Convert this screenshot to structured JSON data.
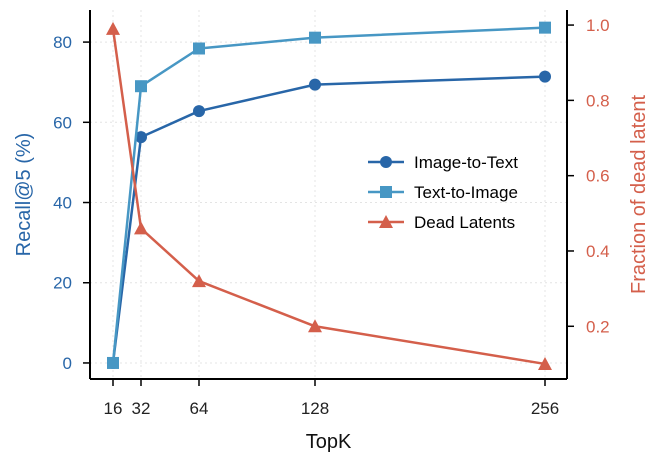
{
  "chart_data": {
    "type": "line",
    "xlabel": "TopK",
    "x": [
      16,
      32,
      64,
      128,
      256
    ],
    "x_ticks": [
      "16",
      "32",
      "64",
      "128",
      "256"
    ],
    "grid": true,
    "legend_position": "center-right",
    "left_axis": {
      "label": "Recall@5 (%)",
      "ylim": [
        -4,
        88
      ],
      "ticks": [
        "0",
        "20",
        "40",
        "60",
        "80"
      ],
      "tick_values": [
        0,
        20,
        40,
        60,
        80
      ],
      "color": "#2866a8"
    },
    "right_axis": {
      "label": "Fraction of dead latent",
      "ylim": [
        0.06,
        1.04
      ],
      "ticks": [
        "0.2",
        "0.4",
        "0.6",
        "0.8",
        "1.0"
      ],
      "tick_values": [
        0.2,
        0.4,
        0.6,
        0.8,
        1.0
      ],
      "color": "#d45f4b"
    },
    "series": [
      {
        "name": "Image-to-Text",
        "axis": "left",
        "marker": "circle",
        "color": "#2866a8",
        "values": [
          0,
          56.3,
          62.8,
          69.4,
          71.4
        ]
      },
      {
        "name": "Text-to-Image",
        "axis": "left",
        "marker": "square",
        "color": "#4797c4",
        "values": [
          0,
          69.0,
          78.4,
          81.1,
          83.6
        ]
      },
      {
        "name": "Dead Latents",
        "axis": "right",
        "marker": "triangle",
        "color": "#d45f4b",
        "values": [
          0.99,
          0.46,
          0.32,
          0.2,
          0.1
        ]
      }
    ]
  }
}
